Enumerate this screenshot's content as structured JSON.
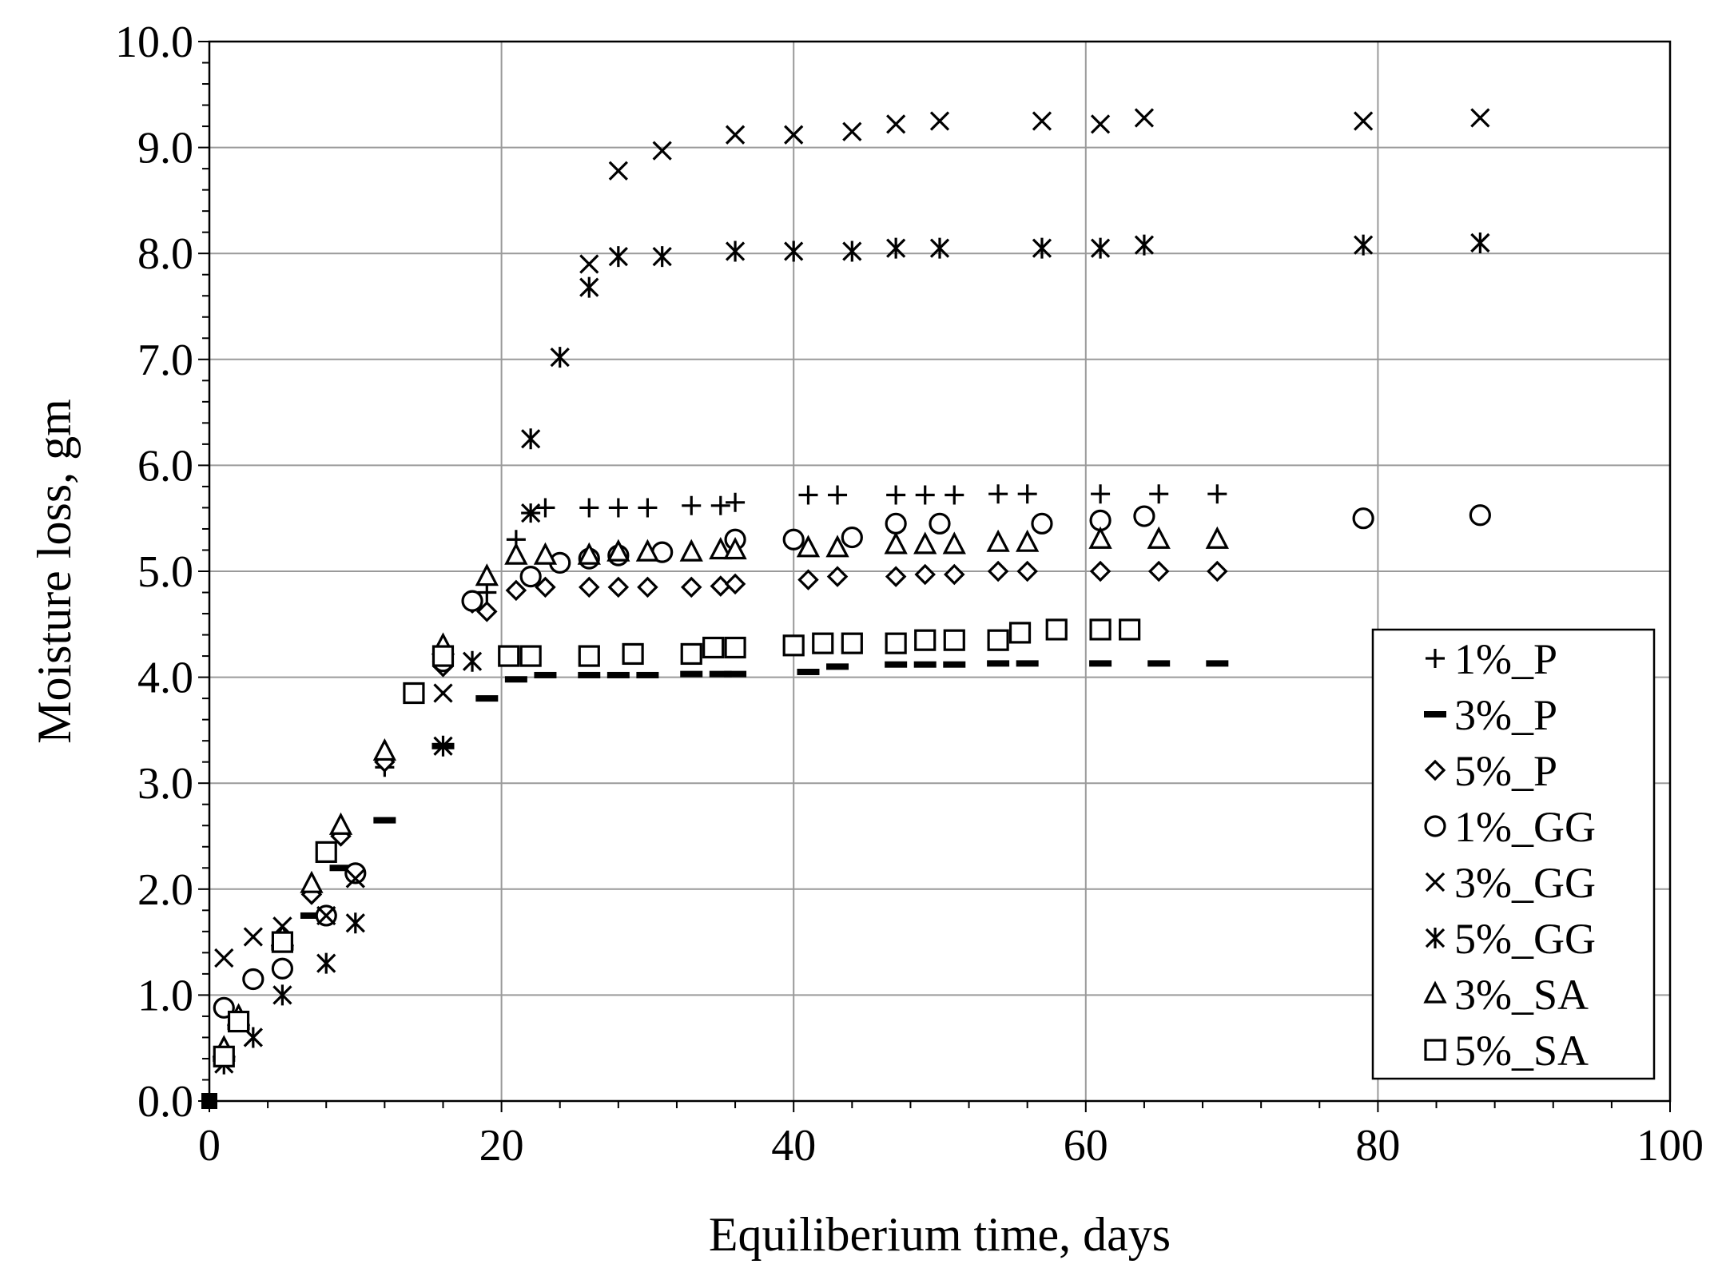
{
  "chart_data": {
    "type": "scatter",
    "title": "",
    "xlabel": "Equiliberium time, days",
    "ylabel": "Moisture loss, gm",
    "xlim": [
      0,
      100
    ],
    "ylim": [
      0,
      10
    ],
    "x_ticks": [
      0,
      20,
      40,
      60,
      80,
      100
    ],
    "x_tick_labels": [
      "0",
      "20",
      "40",
      "60",
      "80",
      "100"
    ],
    "y_ticks": [
      0,
      1,
      2,
      3,
      4,
      5,
      6,
      7,
      8,
      9,
      10
    ],
    "y_tick_labels": [
      "0.0",
      "1.0",
      "2.0",
      "3.0",
      "4.0",
      "5.0",
      "6.0",
      "7.0",
      "8.0",
      "9.0",
      "10.0"
    ],
    "grid": true,
    "legend_position": "bottom-right",
    "series": [
      {
        "name": "1%_P",
        "marker": "plus",
        "points": [
          [
            0,
            0
          ],
          [
            1,
            0.45
          ],
          [
            2,
            0.75
          ],
          [
            5,
            1.5
          ],
          [
            7,
            1.95
          ],
          [
            9,
            2.5
          ],
          [
            12,
            3.15
          ],
          [
            16,
            4.1
          ],
          [
            18,
            4.7
          ],
          [
            19,
            4.8
          ],
          [
            21,
            5.3
          ],
          [
            22,
            5.55
          ],
          [
            23,
            5.6
          ],
          [
            26,
            5.6
          ],
          [
            28,
            5.6
          ],
          [
            30,
            5.6
          ],
          [
            33,
            5.62
          ],
          [
            35,
            5.62
          ],
          [
            36,
            5.65
          ],
          [
            41,
            5.72
          ],
          [
            43,
            5.72
          ],
          [
            47,
            5.72
          ],
          [
            49,
            5.72
          ],
          [
            51,
            5.72
          ],
          [
            54,
            5.73
          ],
          [
            56,
            5.73
          ],
          [
            61,
            5.73
          ],
          [
            65,
            5.73
          ],
          [
            69,
            5.73
          ]
        ]
      },
      {
        "name": "3%_P",
        "marker": "dash",
        "points": [
          [
            0,
            0
          ],
          [
            1,
            0.4
          ],
          [
            2,
            0.7
          ],
          [
            5,
            1.45
          ],
          [
            7,
            1.75
          ],
          [
            9,
            2.2
          ],
          [
            12,
            2.65
          ],
          [
            16,
            3.35
          ],
          [
            19,
            3.8
          ],
          [
            21,
            3.98
          ],
          [
            23,
            4.02
          ],
          [
            26,
            4.02
          ],
          [
            28,
            4.02
          ],
          [
            30,
            4.02
          ],
          [
            33,
            4.03
          ],
          [
            35,
            4.03
          ],
          [
            36,
            4.03
          ],
          [
            41,
            4.05
          ],
          [
            43,
            4.1
          ],
          [
            47,
            4.12
          ],
          [
            49,
            4.12
          ],
          [
            51,
            4.12
          ],
          [
            54,
            4.13
          ],
          [
            56,
            4.13
          ],
          [
            61,
            4.13
          ],
          [
            65,
            4.13
          ],
          [
            69,
            4.13
          ]
        ]
      },
      {
        "name": "5%_P",
        "marker": "diamond",
        "points": [
          [
            0,
            0
          ],
          [
            1,
            0.45
          ],
          [
            2,
            0.75
          ],
          [
            5,
            1.5
          ],
          [
            7,
            1.95
          ],
          [
            9,
            2.5
          ],
          [
            12,
            3.2
          ],
          [
            16,
            4.1
          ],
          [
            18,
            4.7
          ],
          [
            19,
            4.62
          ],
          [
            21,
            4.82
          ],
          [
            23,
            4.85
          ],
          [
            26,
            4.85
          ],
          [
            28,
            4.85
          ],
          [
            30,
            4.85
          ],
          [
            33,
            4.85
          ],
          [
            35,
            4.86
          ],
          [
            36,
            4.88
          ],
          [
            41,
            4.92
          ],
          [
            43,
            4.95
          ],
          [
            47,
            4.95
          ],
          [
            49,
            4.97
          ],
          [
            51,
            4.97
          ],
          [
            54,
            5.0
          ],
          [
            56,
            5.0
          ],
          [
            61,
            5.0
          ],
          [
            65,
            5.0
          ],
          [
            69,
            5.0
          ]
        ]
      },
      {
        "name": "1%_GG",
        "marker": "circle",
        "points": [
          [
            0,
            0
          ],
          [
            1,
            0.88
          ],
          [
            3,
            1.15
          ],
          [
            5,
            1.25
          ],
          [
            8,
            1.75
          ],
          [
            10,
            2.15
          ],
          [
            16,
            4.15
          ],
          [
            18,
            4.72
          ],
          [
            22,
            4.95
          ],
          [
            24,
            5.08
          ],
          [
            26,
            5.12
          ],
          [
            28,
            5.15
          ],
          [
            31,
            5.18
          ],
          [
            36,
            5.3
          ],
          [
            40,
            5.3
          ],
          [
            44,
            5.32
          ],
          [
            47,
            5.45
          ],
          [
            50,
            5.45
          ],
          [
            57,
            5.45
          ],
          [
            61,
            5.48
          ],
          [
            64,
            5.52
          ],
          [
            79,
            5.5
          ],
          [
            87,
            5.53
          ]
        ]
      },
      {
        "name": "3%_GG",
        "marker": "x",
        "points": [
          [
            0,
            0
          ],
          [
            1,
            1.35
          ],
          [
            3,
            1.55
          ],
          [
            5,
            1.65
          ],
          [
            8,
            1.75
          ],
          [
            10,
            2.1
          ],
          [
            16,
            3.85
          ],
          [
            22,
            5.55
          ],
          [
            26,
            7.9
          ],
          [
            28,
            8.78
          ],
          [
            31,
            8.97
          ],
          [
            36,
            9.12
          ],
          [
            40,
            9.12
          ],
          [
            44,
            9.15
          ],
          [
            47,
            9.22
          ],
          [
            50,
            9.25
          ],
          [
            57,
            9.25
          ],
          [
            61,
            9.22
          ],
          [
            64,
            9.28
          ],
          [
            79,
            9.25
          ],
          [
            87,
            9.28
          ]
        ]
      },
      {
        "name": "5%_GG",
        "marker": "asterisk",
        "points": [
          [
            0,
            0
          ],
          [
            1,
            0.35
          ],
          [
            3,
            0.6
          ],
          [
            5,
            1.0
          ],
          [
            8,
            1.3
          ],
          [
            10,
            1.68
          ],
          [
            16,
            3.35
          ],
          [
            18,
            4.15
          ],
          [
            22,
            6.25
          ],
          [
            24,
            7.02
          ],
          [
            26,
            7.68
          ],
          [
            28,
            7.97
          ],
          [
            31,
            7.97
          ],
          [
            36,
            8.02
          ],
          [
            40,
            8.02
          ],
          [
            44,
            8.02
          ],
          [
            47,
            8.05
          ],
          [
            50,
            8.05
          ],
          [
            57,
            8.05
          ],
          [
            61,
            8.05
          ],
          [
            64,
            8.08
          ],
          [
            79,
            8.08
          ],
          [
            87,
            8.1
          ]
        ]
      },
      {
        "name": "3%_SA",
        "marker": "triangle",
        "points": [
          [
            0,
            0
          ],
          [
            1,
            0.5
          ],
          [
            2,
            0.8
          ],
          [
            5,
            1.55
          ],
          [
            7,
            2.05
          ],
          [
            9,
            2.6
          ],
          [
            12,
            3.3
          ],
          [
            16,
            4.3
          ],
          [
            19,
            4.95
          ],
          [
            21,
            5.15
          ],
          [
            23,
            5.15
          ],
          [
            26,
            5.15
          ],
          [
            28,
            5.18
          ],
          [
            30,
            5.18
          ],
          [
            33,
            5.18
          ],
          [
            35,
            5.2
          ],
          [
            36,
            5.2
          ],
          [
            41,
            5.22
          ],
          [
            43,
            5.22
          ],
          [
            47,
            5.25
          ],
          [
            49,
            5.25
          ],
          [
            51,
            5.25
          ],
          [
            54,
            5.27
          ],
          [
            56,
            5.27
          ],
          [
            61,
            5.3
          ],
          [
            65,
            5.3
          ],
          [
            69,
            5.3
          ]
        ]
      },
      {
        "name": "5%_SA",
        "marker": "square",
        "points": [
          [
            0,
            0
          ],
          [
            1,
            0.42
          ],
          [
            2,
            0.75
          ],
          [
            5,
            1.5
          ],
          [
            8,
            2.35
          ],
          [
            14,
            3.85
          ],
          [
            16,
            4.2
          ],
          [
            20.5,
            4.2
          ],
          [
            22,
            4.2
          ],
          [
            26,
            4.2
          ],
          [
            29,
            4.22
          ],
          [
            33,
            4.22
          ],
          [
            34.5,
            4.28
          ],
          [
            36,
            4.28
          ],
          [
            40,
            4.3
          ],
          [
            42,
            4.32
          ],
          [
            44,
            4.32
          ],
          [
            47,
            4.32
          ],
          [
            49,
            4.35
          ],
          [
            51,
            4.35
          ],
          [
            54,
            4.35
          ],
          [
            55.5,
            4.42
          ],
          [
            58,
            4.45
          ],
          [
            61,
            4.45
          ],
          [
            63,
            4.45
          ]
        ]
      }
    ]
  }
}
